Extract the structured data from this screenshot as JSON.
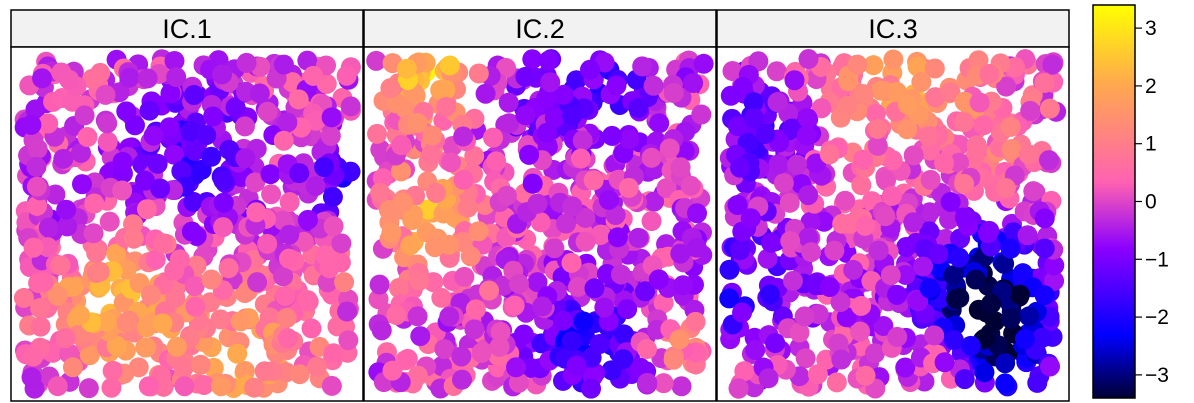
{
  "chart_data": {
    "type": "scatter",
    "panels": [
      {
        "label": "IC.1",
        "seed": 11
      },
      {
        "label": "IC.2",
        "seed": 23
      },
      {
        "label": "IC.3",
        "seed": 37
      }
    ],
    "points_per_panel": 720,
    "value_range": [
      -3.4,
      3.4
    ],
    "colorbar": {
      "ticks": [
        -3,
        -2,
        -1,
        0,
        1,
        2,
        3
      ],
      "tick_labels": [
        "−3",
        "−2",
        "−1",
        "0",
        "1",
        "2",
        "3"
      ],
      "gradient_colors": [
        "#000033",
        "#0000FF",
        "#8B00FF",
        "#FF62B0",
        "#FFA94D",
        "#FFFF00"
      ]
    },
    "strip_background": "#f2f2f2",
    "grid": false
  }
}
